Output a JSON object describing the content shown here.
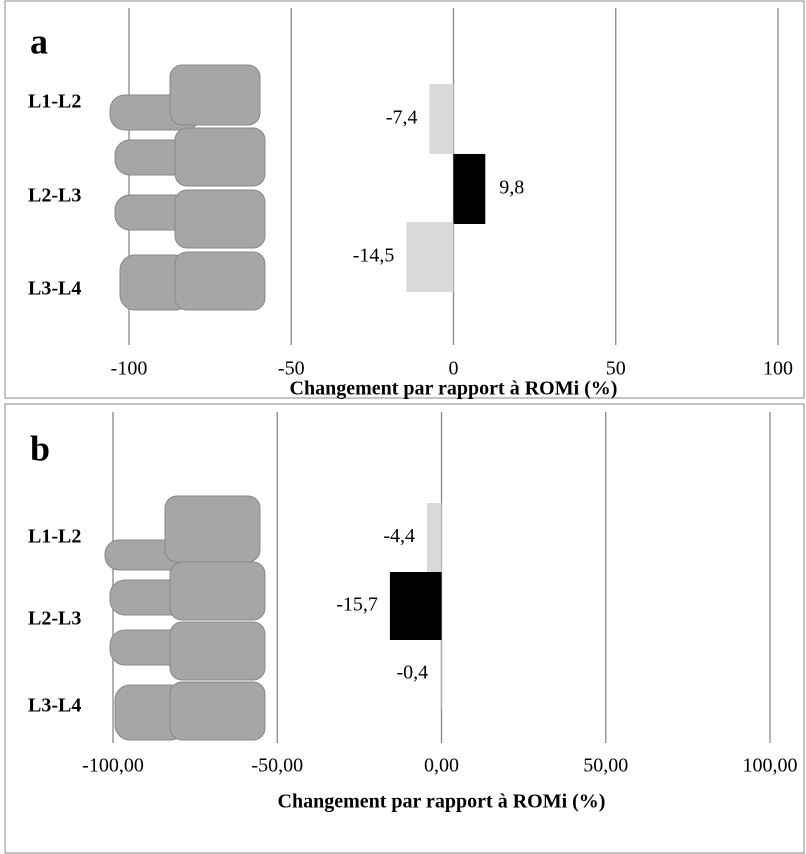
{
  "chart_data": [
    {
      "type": "hbar",
      "label": "a",
      "categories": [
        "L1-L2",
        "L2-L3",
        "L3-L4"
      ],
      "values": [
        -7.4,
        9.8,
        -14.5
      ],
      "value_labels": [
        "-7,4",
        "9,8",
        "-14,5"
      ],
      "colors": [
        "#d9d9d9",
        "#000000",
        "#d9d9d9"
      ],
      "xlim": [
        -100,
        100
      ],
      "xticks": [
        -100,
        -50,
        0,
        50,
        100
      ],
      "grid": true,
      "x_label": "Changement par rapport à ROMi (%)"
    },
    {
      "type": "hbar",
      "label": "b",
      "categories": [
        "L1-L2",
        "L2-L3",
        "L3-L4"
      ],
      "values": [
        -4.4,
        -15.7,
        -0.4
      ],
      "value_labels": [
        "-4,4",
        "-15,7",
        "-0,4"
      ],
      "colors": [
        "#d9d9d9",
        "#000000",
        "#d9d9d9"
      ],
      "xlim": [
        -100,
        100
      ],
      "xticks": [
        {
          "value": -100,
          "label": "-100,00"
        },
        {
          "value": -50,
          "label": "-50,00"
        },
        {
          "value": 0,
          "label": "0,00"
        },
        {
          "value": 50,
          "label": "50,00"
        },
        {
          "value": 100,
          "label": "100,00"
        }
      ],
      "grid": true,
      "x_label": "Changement par rapport à ROMi (%)"
    }
  ]
}
